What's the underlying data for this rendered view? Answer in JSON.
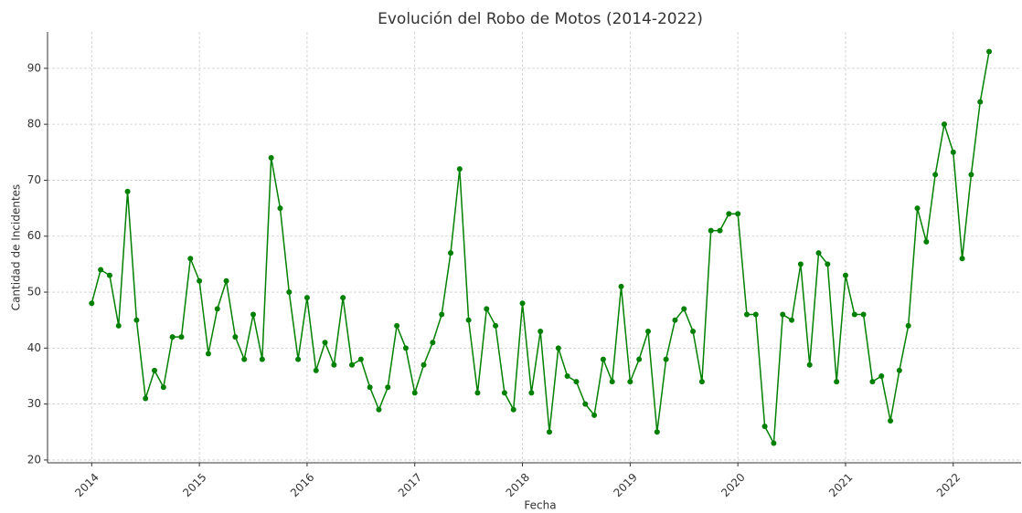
{
  "chart_data": {
    "type": "line",
    "title": "Evolución del Robo de Motos (2014-2022)",
    "x_label": "Fecha",
    "y_label": "Cantidad de Incidentes",
    "x": [
      2014,
      2014.0833,
      2014.1667,
      2014.25,
      2014.3333,
      2014.4167,
      2014.5,
      2014.5833,
      2014.6667,
      2014.75,
      2014.8333,
      2014.9167,
      2015,
      2015.0833,
      2015.1667,
      2015.25,
      2015.3333,
      2015.4167,
      2015.5,
      2015.5833,
      2015.6667,
      2015.75,
      2015.8333,
      2015.9167,
      2016,
      2016.0833,
      2016.1667,
      2016.25,
      2016.3333,
      2016.4167,
      2016.5,
      2016.5833,
      2016.6667,
      2016.75,
      2016.8333,
      2016.9167,
      2017,
      2017.0833,
      2017.1667,
      2017.25,
      2017.3333,
      2017.4167,
      2017.5,
      2017.5833,
      2017.6667,
      2017.75,
      2017.8333,
      2017.9167,
      2018,
      2018.0833,
      2018.1667,
      2018.25,
      2018.3333,
      2018.4167,
      2018.5,
      2018.5833,
      2018.6667,
      2018.75,
      2018.8333,
      2018.9167,
      2019,
      2019.0833,
      2019.1667,
      2019.25,
      2019.3333,
      2019.4167,
      2019.5,
      2019.5833,
      2019.6667,
      2019.75,
      2019.8333,
      2019.9167,
      2020,
      2020.0833,
      2020.1667,
      2020.25,
      2020.3333,
      2020.4167,
      2020.5,
      2020.5833,
      2020.6667,
      2020.75,
      2020.8333,
      2020.9167,
      2021,
      2021.0833,
      2021.1667,
      2021.25,
      2021.3333,
      2021.4167,
      2021.5,
      2021.5833,
      2021.6667,
      2021.75,
      2021.8333,
      2021.9167,
      2022,
      2022.0833,
      2022.1667,
      2022.25,
      2022.3333
    ],
    "series": [
      {
        "name": "Robo de Motos",
        "color": "#008000",
        "values": [
          48,
          54,
          53,
          44,
          68,
          45,
          31,
          36,
          33,
          42,
          42,
          56,
          52,
          39,
          47,
          52,
          42,
          38,
          46,
          38,
          74,
          65,
          50,
          38,
          49,
          36,
          41,
          37,
          49,
          37,
          38,
          33,
          29,
          33,
          44,
          40,
          32,
          37,
          41,
          46,
          57,
          72,
          45,
          32,
          47,
          44,
          32,
          29,
          48,
          32,
          43,
          25,
          40,
          35,
          34,
          30,
          28,
          38,
          34,
          51,
          34,
          38,
          43,
          25,
          38,
          45,
          47,
          43,
          34,
          61,
          61,
          64,
          64,
          46,
          46,
          26,
          23,
          46,
          45,
          55,
          37,
          57,
          55,
          34,
          53,
          46,
          46,
          34,
          35,
          27,
          36,
          44,
          65,
          59,
          71,
          80,
          75,
          56,
          71,
          84,
          93
        ]
      }
    ],
    "xlim": [
      2013.59,
      2022.63
    ],
    "xticks": [
      2014,
      2015,
      2016,
      2017,
      2018,
      2019,
      2020,
      2021,
      2022
    ],
    "ylim": [
      19.5,
      96.5
    ],
    "yticks": [
      20,
      30,
      40,
      50,
      60,
      70,
      80,
      90
    ],
    "grid": true
  }
}
